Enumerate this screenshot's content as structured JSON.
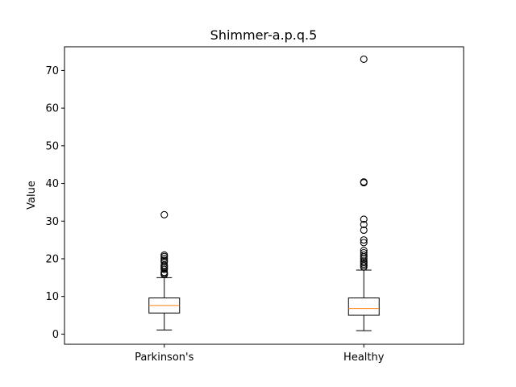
{
  "chart_data": {
    "type": "box",
    "title": "Shimmer-a.p.q.5",
    "xlabel": "",
    "ylabel": "Value",
    "ylim": [
      -2.7,
      76.3
    ],
    "yticks": [
      0,
      10,
      20,
      30,
      40,
      50,
      60,
      70
    ],
    "grid": false,
    "categories": [
      "Parkinson's",
      "Healthy"
    ],
    "boxes": [
      {
        "category": "Parkinson's",
        "whisker_low": 1.1,
        "q1": 5.6,
        "median": 7.6,
        "q3": 9.6,
        "whisker_high": 15.0,
        "outliers": [
          15.8,
          16.1,
          16.4,
          17.2,
          17.6,
          18.0,
          18.3,
          19.2,
          19.6,
          20.1,
          20.6,
          21.0,
          31.7
        ]
      },
      {
        "category": "Healthy",
        "whisker_low": 0.9,
        "q1": 5.0,
        "median": 6.8,
        "q3": 9.6,
        "whisker_high": 17.0,
        "outliers": [
          17.8,
          18.2,
          18.6,
          19.0,
          19.4,
          20.0,
          20.5,
          21.0,
          21.6,
          22.2,
          24.3,
          25.0,
          27.6,
          29.1,
          30.5,
          40.2,
          40.4,
          73.0
        ]
      }
    ],
    "colors": {
      "box": "#000000",
      "median": "#ff7f0e",
      "outlier_edge": "#000000"
    }
  }
}
